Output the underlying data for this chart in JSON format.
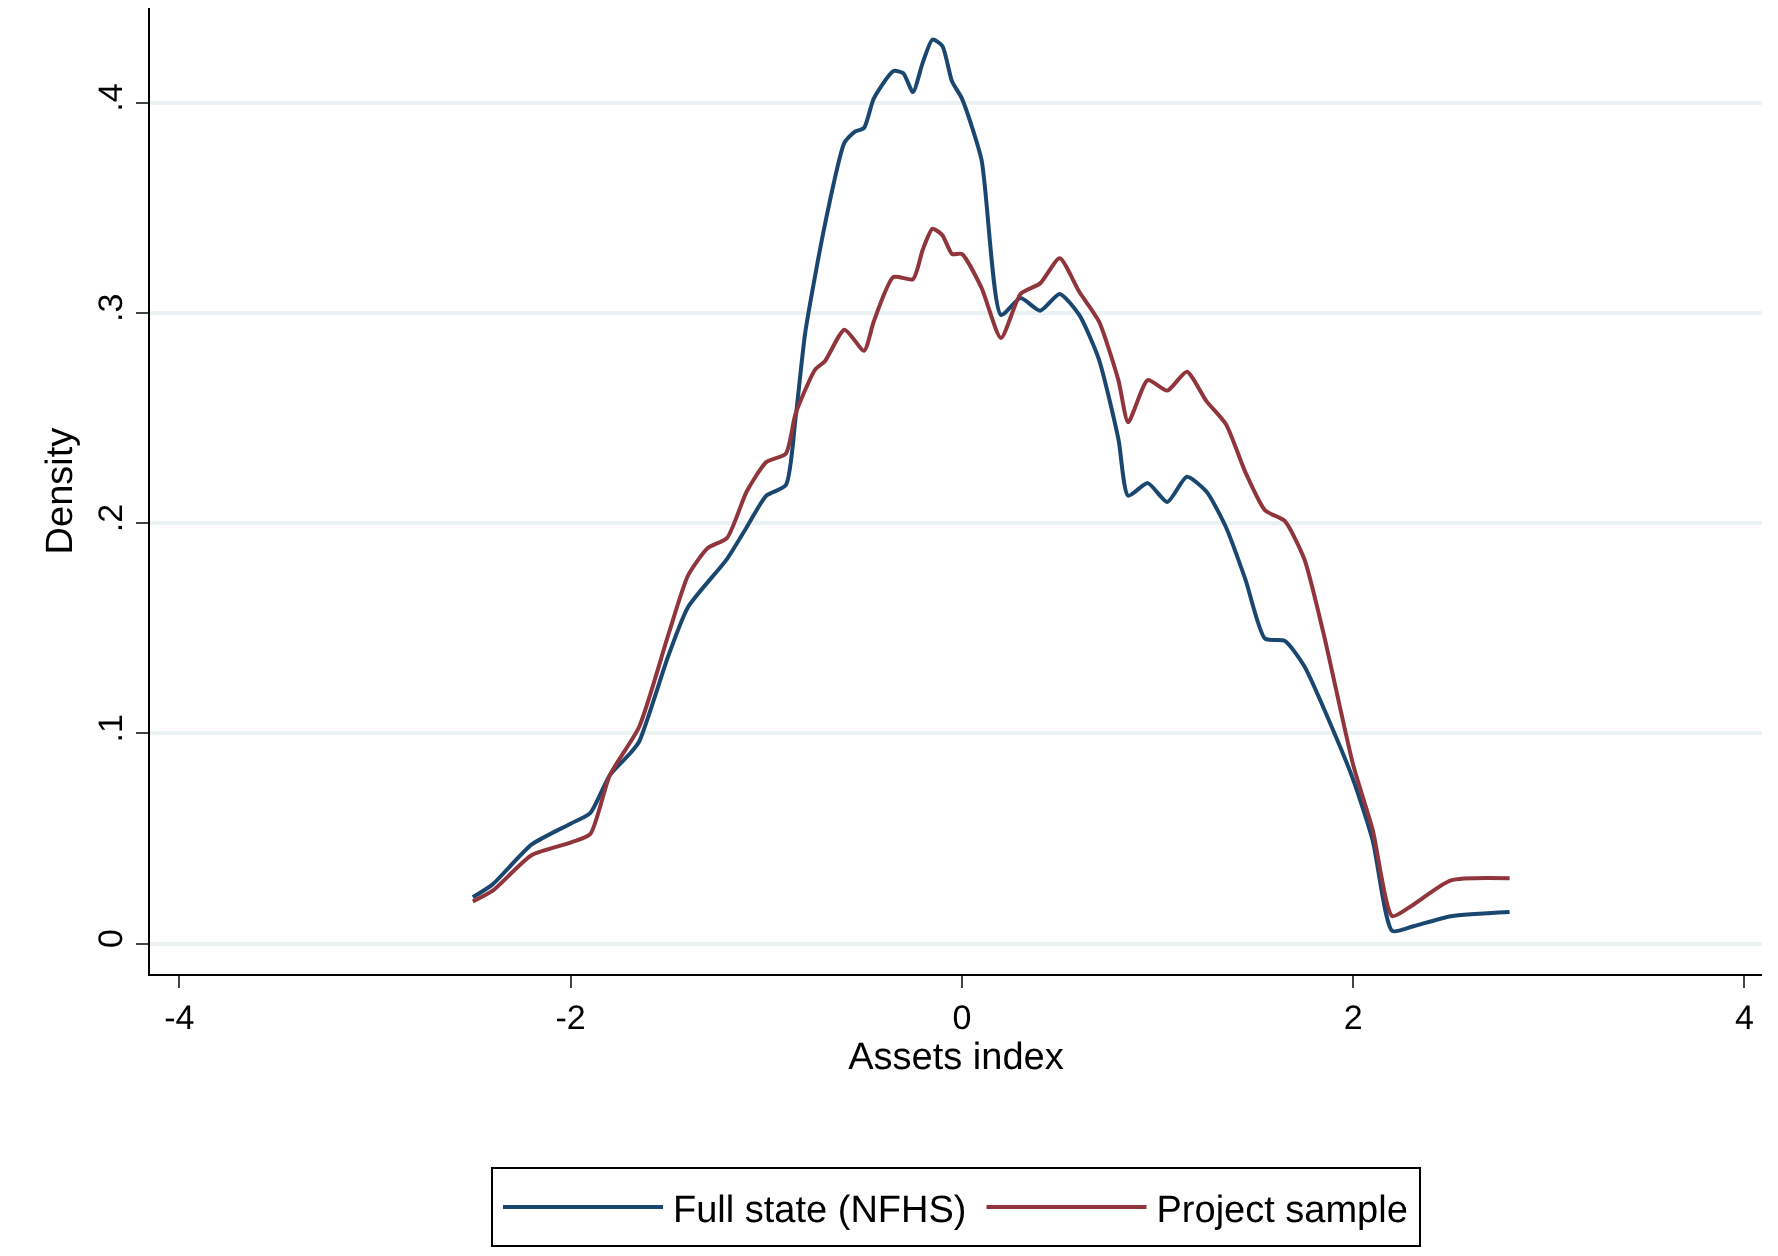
{
  "chart_data": {
    "type": "line",
    "xlabel": "Assets index",
    "ylabel": "Density",
    "xlim": [
      -4.15,
      4.09
    ],
    "xticks": [
      -4,
      -2,
      0,
      2,
      4
    ],
    "ylim": [
      -0.0145,
      0.445
    ],
    "yticks": [
      0,
      {
        "value": 0.1,
        "label": ".1"
      },
      {
        "value": 0.2,
        "label": ".2"
      },
      {
        "value": 0.3,
        "label": ".3"
      },
      {
        "value": 0.4,
        "label": ".4"
      }
    ],
    "grid": "y",
    "legend": "bottom",
    "line_style": "solid",
    "marker": "none",
    "series": [
      {
        "name": "Full state (NFHS)",
        "color": "#1a476f",
        "x": [
          -2.5,
          -2.4,
          -2.2,
          -2.0,
          -1.9,
          -1.8,
          -1.7,
          -1.65,
          -1.5,
          -1.4,
          -1.2,
          -1.1,
          -1.0,
          -0.9,
          -0.85,
          -0.8,
          -0.7,
          -0.6,
          -0.55,
          -0.5,
          -0.45,
          -0.35,
          -0.3,
          -0.25,
          -0.2,
          -0.15,
          -0.1,
          -0.05,
          0,
          0.1,
          0.2,
          0.3,
          0.4,
          0.5,
          0.6,
          0.7,
          0.8,
          0.85,
          0.95,
          1.05,
          1.15,
          1.25,
          1.35,
          1.45,
          1.55,
          1.65,
          1.75,
          1.9,
          2.0,
          2.1,
          2.2,
          2.3,
          2.5,
          2.8
        ],
        "values": [
          0.022,
          0.028,
          0.047,
          0.057,
          0.062,
          0.08,
          0.09,
          0.096,
          0.137,
          0.16,
          0.183,
          0.198,
          0.213,
          0.218,
          0.25,
          0.291,
          0.342,
          0.381,
          0.386,
          0.388,
          0.402,
          0.415,
          0.414,
          0.405,
          0.419,
          0.43,
          0.427,
          0.41,
          0.402,
          0.373,
          0.299,
          0.307,
          0.301,
          0.309,
          0.299,
          0.278,
          0.24,
          0.213,
          0.219,
          0.21,
          0.222,
          0.215,
          0.198,
          0.173,
          0.145,
          0.144,
          0.132,
          0.101,
          0.078,
          0.049,
          0.006,
          0.008,
          0.013,
          0.015
        ]
      },
      {
        "name": "Project sample",
        "color": "#90353b",
        "x": [
          -2.5,
          -2.4,
          -2.2,
          -2.0,
          -1.9,
          -1.8,
          -1.65,
          -1.5,
          -1.4,
          -1.3,
          -1.2,
          -1.1,
          -1.0,
          -0.9,
          -0.85,
          -0.75,
          -0.7,
          -0.6,
          -0.5,
          -0.45,
          -0.35,
          -0.25,
          -0.2,
          -0.15,
          -0.1,
          -0.05,
          0,
          0.1,
          0.2,
          0.3,
          0.4,
          0.5,
          0.6,
          0.7,
          0.8,
          0.85,
          0.95,
          1.05,
          1.15,
          1.25,
          1.35,
          1.45,
          1.55,
          1.65,
          1.75,
          1.85,
          2.0,
          2.1,
          2.2,
          2.3,
          2.5,
          2.8
        ],
        "values": [
          0.02,
          0.025,
          0.042,
          0.048,
          0.052,
          0.08,
          0.103,
          0.147,
          0.175,
          0.188,
          0.193,
          0.215,
          0.229,
          0.233,
          0.252,
          0.273,
          0.277,
          0.292,
          0.282,
          0.296,
          0.317,
          0.316,
          0.33,
          0.34,
          0.337,
          0.328,
          0.328,
          0.312,
          0.288,
          0.309,
          0.314,
          0.326,
          0.31,
          0.296,
          0.268,
          0.248,
          0.268,
          0.263,
          0.272,
          0.258,
          0.247,
          0.224,
          0.206,
          0.201,
          0.183,
          0.147,
          0.085,
          0.054,
          0.013,
          0.018,
          0.03,
          0.031
        ]
      }
    ]
  }
}
